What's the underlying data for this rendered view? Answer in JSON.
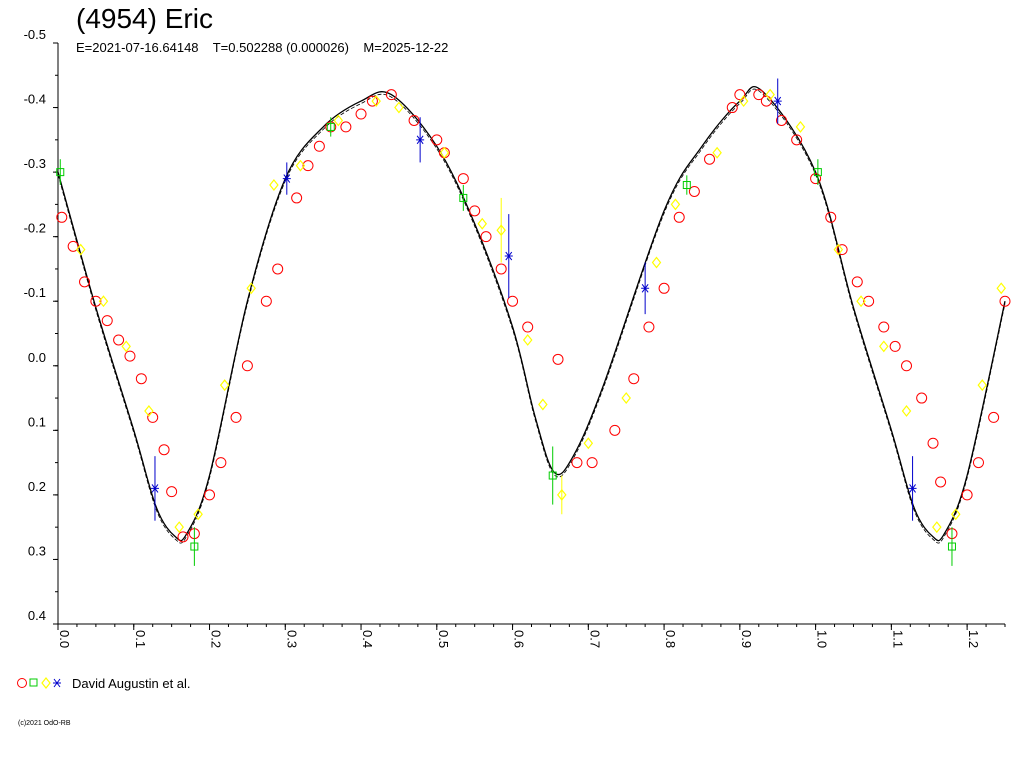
{
  "chart_data": {
    "type": "scatter",
    "title": "(4954) Eric",
    "subtitle": "E=2021-07-16.64148    T=0.502288 (0.000026)    M=2025-12-22",
    "xlabel": "",
    "ylabel": "",
    "xlim": [
      0.0,
      1.25
    ],
    "ylim": [
      0.4,
      -0.5
    ],
    "y_inverted": true,
    "x_ticks": [
      "0.0",
      "0.1",
      "0.2",
      "0.3",
      "0.4",
      "0.5",
      "0.6",
      "0.7",
      "0.8",
      "0.9",
      "1.0",
      "1.1",
      "1.2"
    ],
    "y_ticks": [
      "-0.5",
      "-0.4",
      "-0.3",
      "-0.2",
      "-0.1",
      "0.0",
      "0.1",
      "0.2",
      "0.3",
      "0.4"
    ],
    "grid": false,
    "legend_position": "bottom-left",
    "legend_label": "David Augustin et al.",
    "colors": {
      "circle": "#ff0000",
      "square": "#00cc00",
      "diamond": "#ffff00",
      "star": "#0000cc",
      "fit": "#000000"
    },
    "fit_curve": {
      "name": "",
      "period_repeat": 1.0,
      "x": [
        0.0,
        0.05,
        0.1,
        0.13,
        0.155,
        0.17,
        0.2,
        0.25,
        0.3,
        0.35,
        0.4,
        0.44,
        0.5,
        0.55,
        0.6,
        0.63,
        0.655,
        0.68,
        0.72,
        0.8,
        0.85,
        0.9,
        0.93,
        1.0,
        1.05,
        1.1,
        1.13,
        1.155,
        1.17,
        1.2,
        1.25
      ],
      "y": [
        -0.3,
        -0.09,
        0.1,
        0.22,
        0.265,
        0.26,
        0.17,
        -0.1,
        -0.29,
        -0.37,
        -0.41,
        -0.42,
        -0.34,
        -0.22,
        -0.06,
        0.08,
        0.165,
        0.14,
        0.03,
        -0.24,
        -0.34,
        -0.41,
        -0.425,
        -0.3,
        -0.09,
        0.1,
        0.22,
        0.265,
        0.26,
        0.17,
        -0.1
      ]
    },
    "series": [
      {
        "marker": "circle",
        "x": [
          0.005,
          0.02,
          0.035,
          0.05,
          0.065,
          0.08,
          0.095,
          0.11,
          0.125,
          0.14,
          0.15,
          0.165,
          0.18,
          0.2,
          0.215,
          0.235,
          0.25,
          0.275,
          0.29,
          0.315,
          0.33,
          0.345,
          0.36,
          0.38,
          0.4,
          0.415,
          0.44,
          0.47,
          0.5,
          0.51,
          0.535,
          0.55,
          0.565,
          0.585,
          0.6,
          0.62,
          0.66,
          0.685,
          0.705,
          0.735,
          0.76,
          0.78,
          0.8,
          0.82,
          0.84,
          0.86,
          0.89,
          0.9,
          0.925,
          0.935,
          0.955,
          0.975,
          1.0,
          1.02,
          1.035,
          1.055,
          1.07,
          1.09,
          1.105,
          1.12,
          1.14,
          1.155,
          1.165,
          1.18,
          1.2,
          1.215,
          1.235,
          1.25
        ],
        "y": [
          -0.23,
          -0.185,
          -0.13,
          -0.1,
          -0.07,
          -0.04,
          -0.015,
          0.02,
          0.08,
          0.13,
          0.195,
          0.265,
          0.26,
          0.2,
          0.15,
          0.08,
          0.0,
          -0.1,
          -0.15,
          -0.26,
          -0.31,
          -0.34,
          -0.37,
          -0.37,
          -0.39,
          -0.41,
          -0.42,
          -0.38,
          -0.35,
          -0.33,
          -0.29,
          -0.24,
          -0.2,
          -0.15,
          -0.1,
          -0.06,
          -0.01,
          0.15,
          0.15,
          0.1,
          0.02,
          -0.06,
          -0.12,
          -0.23,
          -0.27,
          -0.32,
          -0.4,
          -0.42,
          -0.42,
          -0.41,
          -0.38,
          -0.35,
          -0.29,
          -0.23,
          -0.18,
          -0.13,
          -0.1,
          -0.06,
          -0.03,
          0.0,
          0.05,
          0.12,
          0.18,
          0.26,
          0.2,
          0.15,
          0.08,
          -0.1
        ]
      },
      {
        "marker": "square",
        "x": [
          0.003,
          0.18,
          0.36,
          0.535,
          0.653,
          0.83,
          1.003,
          1.18
        ],
        "y": [
          -0.3,
          0.28,
          -0.37,
          -0.26,
          0.17,
          -0.28,
          -0.3,
          0.28
        ],
        "err": [
          0.02,
          0.03,
          0.015,
          0.02,
          0.045,
          0.015,
          0.02,
          0.03
        ]
      },
      {
        "marker": "diamond",
        "x": [
          0.03,
          0.06,
          0.09,
          0.12,
          0.16,
          0.185,
          0.22,
          0.255,
          0.285,
          0.32,
          0.37,
          0.42,
          0.45,
          0.51,
          0.56,
          0.585,
          0.62,
          0.64,
          0.665,
          0.7,
          0.75,
          0.79,
          0.815,
          0.87,
          0.905,
          0.94,
          0.98,
          1.03,
          1.06,
          1.09,
          1.12,
          1.16,
          1.185,
          1.22,
          1.245
        ],
        "y": [
          -0.18,
          -0.1,
          -0.03,
          0.07,
          0.25,
          0.23,
          0.03,
          -0.12,
          -0.28,
          -0.31,
          -0.38,
          -0.41,
          -0.4,
          -0.33,
          -0.22,
          -0.21,
          -0.04,
          0.06,
          0.2,
          0.12,
          0.05,
          -0.16,
          -0.25,
          -0.33,
          -0.41,
          -0.42,
          -0.37,
          -0.18,
          -0.1,
          -0.03,
          0.07,
          0.25,
          0.23,
          0.03,
          -0.12
        ],
        "err": [
          0,
          0,
          0,
          0,
          0,
          0,
          0,
          0,
          0,
          0,
          0,
          0,
          0,
          0,
          0,
          0.05,
          0,
          0,
          0.03,
          0,
          0,
          0,
          0,
          0,
          0,
          0,
          0,
          0,
          0,
          0,
          0,
          0,
          0,
          0,
          0
        ]
      },
      {
        "marker": "star",
        "x": [
          0.128,
          0.302,
          0.478,
          0.595,
          0.775,
          0.95,
          1.128
        ],
        "y": [
          0.19,
          -0.29,
          -0.35,
          -0.17,
          -0.12,
          -0.41,
          0.19
        ],
        "err": [
          0.05,
          0.025,
          0.035,
          0.065,
          0.04,
          0.035,
          0.05
        ]
      }
    ]
  },
  "copyright": "(c)2021 OdO-RB"
}
